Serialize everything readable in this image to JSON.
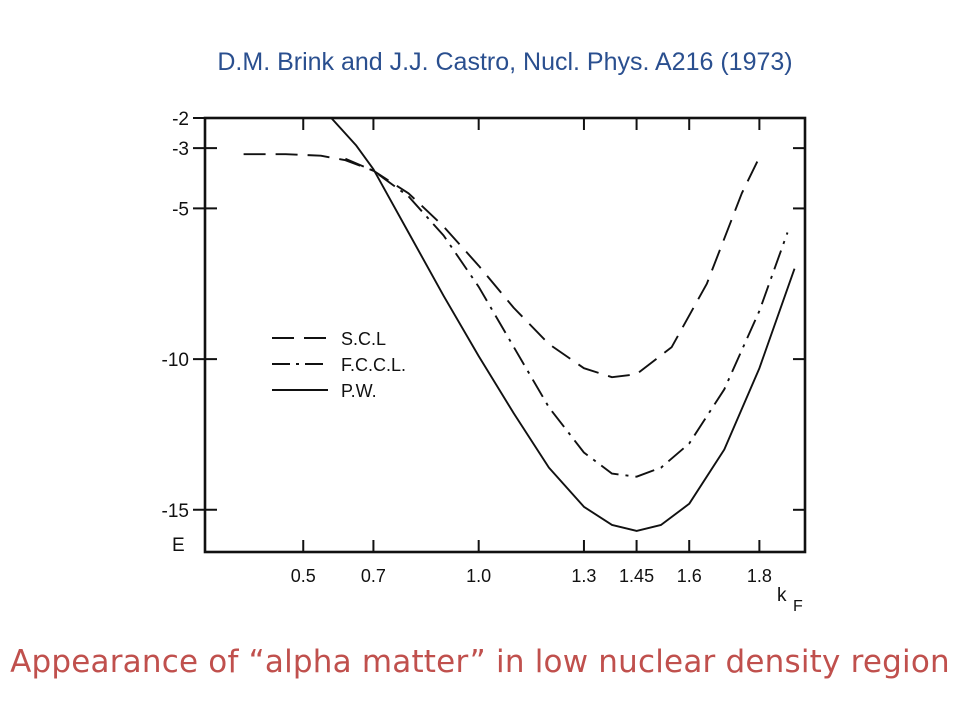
{
  "citation": "D.M. Brink and J.J. Castro, Nucl. Phys. A216 (1973)",
  "caption": "Appearance of “alpha matter” in low nuclear density region",
  "chart_data": {
    "type": "line",
    "xlabel": "kF",
    "ylabel": "E",
    "xlim": [
      0.22,
      1.93
    ],
    "ylim": [
      -16.4,
      -2
    ],
    "x_ticks": [
      {
        "value": 0.5,
        "label": "0.5"
      },
      {
        "value": 0.7,
        "label": "0.7"
      },
      {
        "value": 1.0,
        "label": "1.0"
      },
      {
        "value": 1.3,
        "label": "1.3"
      },
      {
        "value": 1.45,
        "label": "1.45"
      },
      {
        "value": 1.6,
        "label": "1.6"
      },
      {
        "value": 1.8,
        "label": "1.8"
      }
    ],
    "y_ticks": [
      {
        "value": -2,
        "label": "-2"
      },
      {
        "value": -3,
        "label": "-3"
      },
      {
        "value": -5,
        "label": "-5"
      },
      {
        "value": -10,
        "label": "-10"
      },
      {
        "value": -15,
        "label": "-15"
      }
    ],
    "legend": [
      {
        "label": "S.C.L",
        "style": "dashed"
      },
      {
        "label": "F.C.C.L.",
        "style": "dashdot"
      },
      {
        "label": "P.W.",
        "style": "solid"
      }
    ],
    "series": [
      {
        "name": "S.C.L",
        "style": "dashed",
        "x": [
          0.33,
          0.45,
          0.55,
          0.62,
          0.7,
          0.8,
          0.9,
          1.0,
          1.1,
          1.2,
          1.3,
          1.38,
          1.45,
          1.55,
          1.65,
          1.75,
          1.8
        ],
        "y": [
          -3.2,
          -3.2,
          -3.25,
          -3.4,
          -3.75,
          -4.5,
          -5.6,
          -6.9,
          -8.3,
          -9.5,
          -10.3,
          -10.6,
          -10.5,
          -9.6,
          -7.5,
          -4.5,
          -3.3
        ]
      },
      {
        "name": "F.C.C.L.",
        "style": "dashdot",
        "x": [
          0.62,
          0.7,
          0.8,
          0.9,
          1.0,
          1.1,
          1.2,
          1.3,
          1.38,
          1.45,
          1.52,
          1.6,
          1.7,
          1.8,
          1.88
        ],
        "y": [
          -3.35,
          -3.75,
          -4.6,
          -5.9,
          -7.6,
          -9.6,
          -11.6,
          -13.1,
          -13.8,
          -13.9,
          -13.6,
          -12.8,
          -11.0,
          -8.4,
          -5.8
        ]
      },
      {
        "name": "P.W.",
        "style": "solid",
        "x": [
          0.58,
          0.65,
          0.7,
          0.8,
          0.9,
          1.0,
          1.1,
          1.2,
          1.3,
          1.38,
          1.45,
          1.52,
          1.6,
          1.7,
          1.8,
          1.9
        ],
        "y": [
          -2.0,
          -2.9,
          -3.7,
          -5.8,
          -7.9,
          -9.9,
          -11.8,
          -13.6,
          -14.9,
          -15.5,
          -15.7,
          -15.5,
          -14.8,
          -13.0,
          -10.3,
          -7.0
        ]
      }
    ]
  }
}
